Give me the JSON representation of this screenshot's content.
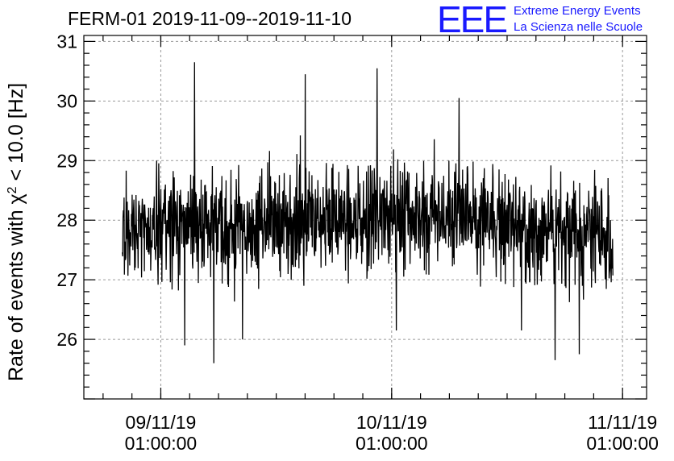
{
  "chart_data": {
    "type": "line",
    "title": "FERM-01 2019-11-09--2019-11-10",
    "ylabel_prefix": "Rate of events with ",
    "ylabel_chi": "χ",
    "ylabel_sup": "2",
    "ylabel_suffix": " < 10.0 [Hz]",
    "ylim": [
      25.0,
      31.1
    ],
    "yticks": [
      26,
      27,
      28,
      29,
      30,
      31
    ],
    "xlim": [
      "2019-11-08T17:00:00",
      "2019-11-11T03:30:00"
    ],
    "xticks": [
      {
        "time": "2019-11-09T01:00:00",
        "date": "09/11/19",
        "clock": "01:00:00"
      },
      {
        "time": "2019-11-10T01:00:00",
        "date": "10/11/19",
        "clock": "01:00:00"
      },
      {
        "time": "2019-11-11T01:00:00",
        "date": "11/11/19",
        "clock": "01:00:00"
      }
    ],
    "grid": true,
    "series": [
      {
        "color": "#000000",
        "x_start": "2019-11-08T21:00:00",
        "x_end": "2019-11-11T00:00:00",
        "baseline": [
          {
            "time": "2019-11-08T21:00:00",
            "mean": 27.8
          },
          {
            "time": "2019-11-09T07:00:00",
            "mean": 27.9
          },
          {
            "time": "2019-11-09T13:00:00",
            "mean": 27.95
          },
          {
            "time": "2019-11-09T20:00:00",
            "mean": 28.05
          },
          {
            "time": "2019-11-10T05:00:00",
            "mean": 28.15
          },
          {
            "time": "2019-11-10T09:00:00",
            "mean": 28.1
          },
          {
            "time": "2019-11-10T14:00:00",
            "mean": 27.9
          },
          {
            "time": "2019-11-10T20:00:00",
            "mean": 27.8
          },
          {
            "time": "2019-11-11T00:00:00",
            "mean": 27.85
          }
        ],
        "typical_spread": 0.45,
        "extremes": [
          {
            "time": "2019-11-09T04:30:00",
            "value": 30.65
          },
          {
            "time": "2019-11-09T06:30:00",
            "value": 25.6
          },
          {
            "time": "2019-11-09T03:30:00",
            "value": 25.9
          },
          {
            "time": "2019-11-09T16:00:00",
            "value": 30.45
          },
          {
            "time": "2019-11-09T09:30:00",
            "value": 26.0
          },
          {
            "time": "2019-11-09T23:30:00",
            "value": 30.55
          },
          {
            "time": "2019-11-10T01:30:00",
            "value": 26.15
          },
          {
            "time": "2019-11-10T08:00:00",
            "value": 30.05
          },
          {
            "time": "2019-11-10T14:30:00",
            "value": 26.15
          },
          {
            "time": "2019-11-10T18:00:00",
            "value": 25.65
          },
          {
            "time": "2019-11-10T20:30:00",
            "value": 25.75
          }
        ]
      }
    ]
  },
  "logo": {
    "mark": "EEE",
    "line1": "Extreme Energy Events",
    "line2": "La Scienza nelle Scuole",
    "color": "#1a1aff"
  }
}
